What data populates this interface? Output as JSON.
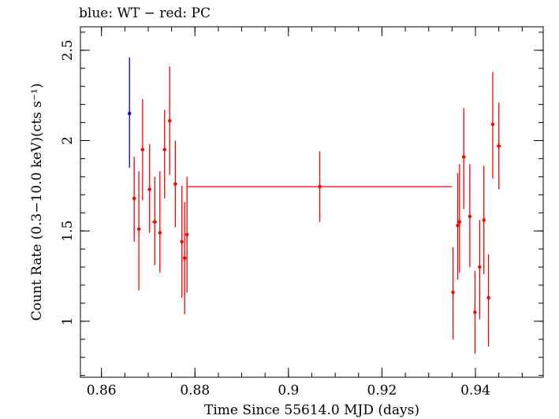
{
  "chart_data": {
    "type": "scatter",
    "title": "blue: WT − red: PC",
    "xlabel": "Time Since 55614.0 MJD (days)",
    "ylabel": "Count Rate (0.3−10.0 keV)(cts s⁻¹)",
    "xlim": [
      0.8555,
      0.9545
    ],
    "ylim": [
      0.69,
      2.63
    ],
    "xticks": [
      0.86,
      0.88,
      0.9,
      0.92,
      0.94
    ],
    "xtick_labels": [
      "0.86",
      "0.88",
      "0.9",
      "0.92",
      "0.94"
    ],
    "yticks": [
      1,
      1.5,
      2,
      2.5
    ],
    "ytick_labels": [
      "1",
      "1.5",
      "2",
      "2.5"
    ],
    "grid": false,
    "series": [
      {
        "name": "WT",
        "color": "#0000ff",
        "points": [
          {
            "x": 0.866,
            "y": 2.15,
            "xerr": 0,
            "ylo": 1.85,
            "yhi": 2.46
          }
        ]
      },
      {
        "name": "PC",
        "color": "#ff0000",
        "points": [
          {
            "x": 0.867,
            "y": 1.68,
            "xerr": 0.0004,
            "ylo": 1.44,
            "yhi": 1.91
          },
          {
            "x": 0.868,
            "y": 1.51,
            "xerr": 0.0001,
            "ylo": 1.17,
            "yhi": 1.83
          },
          {
            "x": 0.8688,
            "y": 1.95,
            "xerr": 0.0004,
            "ylo": 1.67,
            "yhi": 2.23
          },
          {
            "x": 0.8703,
            "y": 1.73,
            "xerr": 0.0004,
            "ylo": 1.49,
            "yhi": 1.98
          },
          {
            "x": 0.8714,
            "y": 1.55,
            "xerr": 0.0005,
            "ylo": 1.31,
            "yhi": 1.8
          },
          {
            "x": 0.8725,
            "y": 1.49,
            "xerr": 0.0001,
            "ylo": 1.27,
            "yhi": 1.83
          },
          {
            "x": 0.8735,
            "y": 1.95,
            "xerr": 0.0004,
            "ylo": 1.68,
            "yhi": 2.17
          },
          {
            "x": 0.8746,
            "y": 2.11,
            "xerr": 0.0003,
            "ylo": 1.81,
            "yhi": 2.41
          },
          {
            "x": 0.8758,
            "y": 1.76,
            "xerr": 0.0004,
            "ylo": 1.52,
            "yhi": 2.0
          },
          {
            "x": 0.8772,
            "y": 1.44,
            "xerr": 0.0002,
            "ylo": 1.13,
            "yhi": 1.75
          },
          {
            "x": 0.8778,
            "y": 1.35,
            "xerr": 0.0002,
            "ylo": 1.04,
            "yhi": 1.66
          },
          {
            "x": 0.8783,
            "y": 1.48,
            "xerr": 0.0003,
            "ylo": 1.16,
            "yhi": 1.8
          },
          {
            "x": 0.9067,
            "y": 1.745,
            "xerr": 0.0283,
            "ylo": 1.55,
            "yhi": 1.94
          },
          {
            "x": 0.9352,
            "y": 1.16,
            "xerr": 0.0002,
            "ylo": 0.9,
            "yhi": 1.41
          },
          {
            "x": 0.9362,
            "y": 1.53,
            "xerr": 0.0001,
            "ylo": 1.23,
            "yhi": 1.82
          },
          {
            "x": 0.9366,
            "y": 1.55,
            "xerr": 0.0002,
            "ylo": 1.27,
            "yhi": 1.87
          },
          {
            "x": 0.9375,
            "y": 1.91,
            "xerr": 0.0004,
            "ylo": 1.62,
            "yhi": 2.18
          },
          {
            "x": 0.9388,
            "y": 1.58,
            "xerr": 0.0003,
            "ylo": 1.3,
            "yhi": 1.87
          },
          {
            "x": 0.9399,
            "y": 1.05,
            "xerr": 0.0003,
            "ylo": 0.82,
            "yhi": 1.28
          },
          {
            "x": 0.9409,
            "y": 1.3,
            "xerr": 0.0003,
            "ylo": 1.01,
            "yhi": 1.56
          },
          {
            "x": 0.9418,
            "y": 1.56,
            "xerr": 0.0002,
            "ylo": 1.26,
            "yhi": 1.86
          },
          {
            "x": 0.9428,
            "y": 1.13,
            "xerr": 0.0002,
            "ylo": 0.86,
            "yhi": 1.37
          },
          {
            "x": 0.9437,
            "y": 2.09,
            "xerr": 0.0002,
            "ylo": 1.79,
            "yhi": 2.38
          },
          {
            "x": 0.945,
            "y": 1.97,
            "xerr": 0.0005,
            "ylo": 1.73,
            "yhi": 2.21
          }
        ]
      }
    ]
  }
}
